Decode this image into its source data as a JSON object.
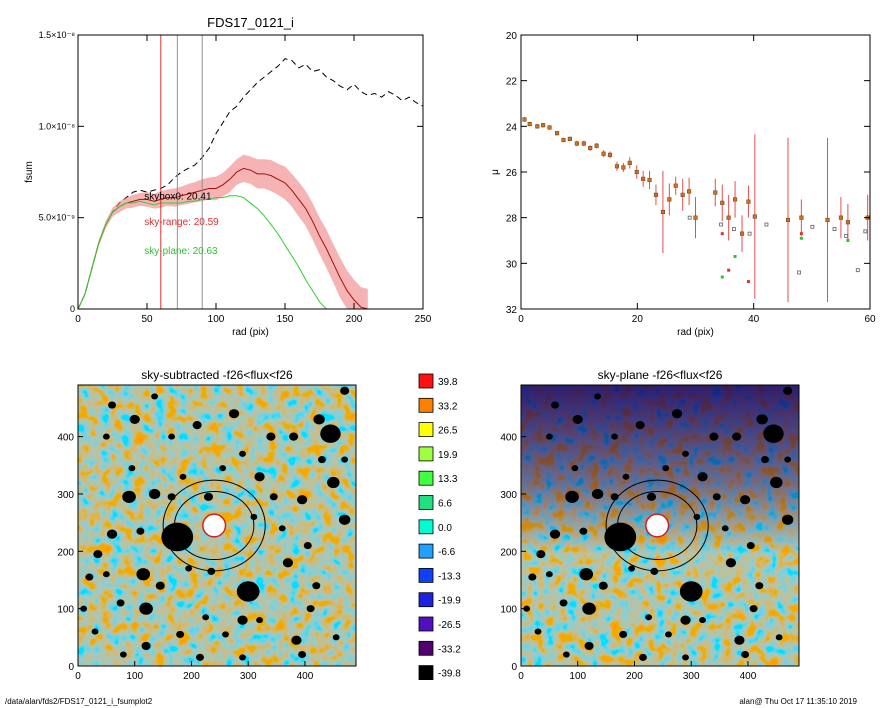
{
  "footer": {
    "path": "/data/alan/fds2/FDS17_0121_i_fsumplot2",
    "stamp": "alan@  Thu Oct 17 11:35:10 2019"
  },
  "chart_data": [
    {
      "id": "fsum",
      "type": "line",
      "title": "FDS17_0121_i",
      "xlabel": "rad (pix)",
      "ylabel": "fsum",
      "xlim": [
        0,
        250
      ],
      "ylim": [
        0,
        1.5e-08
      ],
      "xticks": [
        0,
        50,
        100,
        150,
        200,
        250
      ],
      "yticks": [
        {
          "v": 0,
          "label": "0"
        },
        {
          "v": 5e-09,
          "label": "5.0×10⁻⁹"
        },
        {
          "v": 1e-08,
          "label": "1.0×10⁻⁸"
        },
        {
          "v": 1.5e-08,
          "label": "1.5×10⁻⁸"
        }
      ],
      "vlines": [
        {
          "x": 60,
          "color": "#e03030"
        },
        {
          "x": 72,
          "color": "#909090"
        },
        {
          "x": 90,
          "color": "#909090"
        }
      ],
      "annotations": [
        {
          "text": "skybox0: 20.41",
          "x": 48,
          "y": 6e-09,
          "color": "#000000"
        },
        {
          "text": "sky-range: 20.59",
          "x": 48,
          "y": 4.6e-09,
          "color": "#e03030"
        },
        {
          "text": "sky-plane: 20.63",
          "x": 48,
          "y": 3e-09,
          "color": "#30c030"
        }
      ],
      "series": [
        {
          "style": "dash",
          "color": "#000000",
          "x": [
            0,
            5,
            10,
            15,
            20,
            25,
            30,
            35,
            40,
            45,
            50,
            55,
            60,
            65,
            70,
            75,
            80,
            85,
            90,
            95,
            100,
            105,
            110,
            115,
            120,
            125,
            130,
            135,
            140,
            145,
            150,
            155,
            160,
            165,
            170,
            175,
            180,
            185,
            190,
            195,
            200,
            205,
            210,
            215,
            220,
            225,
            230,
            235,
            240,
            245,
            250
          ],
          "y": [
            0,
            8e-10,
            2.2e-09,
            3.6e-09,
            4.6e-09,
            5.3e-09,
            5.8e-09,
            6.1e-09,
            6.4e-09,
            6.5e-09,
            6.4e-09,
            6.5e-09,
            6.6e-09,
            6.8e-09,
            7.2e-09,
            7.5e-09,
            7.7e-09,
            7.9e-09,
            8.3e-09,
            8.8e-09,
            9.6e-09,
            1.02e-08,
            1.08e-08,
            1.11e-08,
            1.16e-08,
            1.2e-08,
            1.24e-08,
            1.27e-08,
            1.3e-08,
            1.33e-08,
            1.37e-08,
            1.36e-08,
            1.32e-08,
            1.34e-08,
            1.3e-08,
            1.31e-08,
            1.27e-08,
            1.25e-08,
            1.22e-08,
            1.2e-08,
            1.23e-08,
            1.19e-08,
            1.17e-08,
            1.18e-08,
            1.16e-08,
            1.19e-08,
            1.17e-08,
            1.14e-08,
            1.16e-08,
            1.13e-08,
            1.11e-08
          ]
        },
        {
          "style": "band",
          "color": "#f08080",
          "x": [
            0,
            5,
            10,
            15,
            20,
            25,
            30,
            35,
            40,
            45,
            50,
            55,
            60,
            65,
            70,
            75,
            80,
            85,
            90,
            95,
            100,
            105,
            110,
            115,
            120,
            125,
            130,
            135,
            140,
            145,
            150,
            155,
            160,
            165,
            170,
            175,
            180,
            185,
            190,
            195,
            200,
            205,
            210
          ],
          "y": [
            0,
            8e-10,
            2.2e-09,
            3.6e-09,
            4.6e-09,
            5.3e-09,
            5.6e-09,
            5.8e-09,
            5.9e-09,
            6e-09,
            6e-09,
            5.9e-09,
            6e-09,
            6.1e-09,
            6.1e-09,
            6.2e-09,
            6.3e-09,
            6.4e-09,
            6.5e-09,
            6.6e-09,
            6.6e-09,
            6.8e-09,
            7.1e-09,
            7.5e-09,
            7.7e-09,
            7.6e-09,
            7.4e-09,
            7.4e-09,
            7.3e-09,
            7.1e-09,
            6.9e-09,
            6.5e-09,
            6e-09,
            5.5e-09,
            4.8e-09,
            4e-09,
            3.3e-09,
            2.5e-09,
            1.7e-09,
            1e-09,
            5e-10,
            1e-10,
            0
          ],
          "err": [
            0,
            5e-11,
            1e-10,
            1.5e-10,
            2e-10,
            2.5e-10,
            3e-10,
            3e-10,
            3.5e-10,
            3.5e-10,
            4e-10,
            4e-10,
            4.5e-10,
            4.5e-10,
            5e-10,
            5e-10,
            5.5e-10,
            5.5e-10,
            6e-10,
            6e-10,
            6.5e-10,
            6.5e-10,
            7e-10,
            7e-10,
            7.5e-10,
            7.5e-10,
            8e-10,
            8e-10,
            8.5e-10,
            8.5e-10,
            9e-10,
            9e-10,
            9.5e-10,
            9.5e-10,
            1e-09,
            1e-09,
            1.05e-09,
            1.05e-09,
            1.1e-09,
            1.1e-09,
            1.1e-09,
            1.1e-09,
            1.1e-09
          ]
        },
        {
          "style": "solid",
          "color": "#a01010",
          "x": [
            0,
            5,
            10,
            15,
            20,
            25,
            30,
            35,
            40,
            45,
            50,
            55,
            60,
            65,
            70,
            75,
            80,
            85,
            90,
            95,
            100,
            105,
            110,
            115,
            120,
            125,
            130,
            135,
            140,
            145,
            150,
            155,
            160,
            165,
            170,
            175,
            180,
            185,
            190,
            195,
            200,
            205,
            210
          ],
          "y": [
            0,
            8e-10,
            2.2e-09,
            3.6e-09,
            4.6e-09,
            5.3e-09,
            5.6e-09,
            5.8e-09,
            5.9e-09,
            6e-09,
            6e-09,
            5.9e-09,
            6e-09,
            6.1e-09,
            6.1e-09,
            6.2e-09,
            6.3e-09,
            6.4e-09,
            6.5e-09,
            6.6e-09,
            6.6e-09,
            6.8e-09,
            7.1e-09,
            7.5e-09,
            7.7e-09,
            7.6e-09,
            7.4e-09,
            7.4e-09,
            7.3e-09,
            7.1e-09,
            6.9e-09,
            6.5e-09,
            6e-09,
            5.5e-09,
            4.8e-09,
            4e-09,
            3.3e-09,
            2.5e-09,
            1.7e-09,
            1e-09,
            5e-10,
            1e-10,
            0
          ]
        },
        {
          "style": "solid",
          "color": "#30d030",
          "x": [
            0,
            5,
            10,
            15,
            20,
            25,
            30,
            35,
            40,
            45,
            50,
            55,
            60,
            65,
            70,
            75,
            80,
            85,
            90,
            95,
            100,
            105,
            110,
            115,
            120,
            125,
            130,
            135,
            140,
            145,
            150,
            155,
            160,
            165,
            170,
            175,
            180
          ],
          "y": [
            0,
            8e-10,
            2.2e-09,
            3.6e-09,
            4.6e-09,
            5.3e-09,
            5.6e-09,
            5.8e-09,
            5.8e-09,
            5.9e-09,
            5.8e-09,
            5.7e-09,
            5.8e-09,
            5.8e-09,
            5.8e-09,
            5.8e-09,
            5.9e-09,
            5.9e-09,
            6e-09,
            6e-09,
            6.1e-09,
            6.1e-09,
            6.2e-09,
            6.2e-09,
            6.1e-09,
            5.8e-09,
            5.5e-09,
            5.1e-09,
            4.6e-09,
            4.1e-09,
            3.5e-09,
            2.9e-09,
            2.3e-09,
            1.6e-09,
            1e-09,
            4e-10,
            0
          ]
        }
      ]
    },
    {
      "id": "mu",
      "type": "scatter",
      "title": "",
      "xlabel": "rad (pix)",
      "ylabel": "μ",
      "xlim": [
        0,
        60
      ],
      "ylim": [
        32,
        20
      ],
      "xticks": [
        0,
        20,
        40,
        60
      ],
      "yticks": [
        20,
        22,
        24,
        26,
        28,
        30,
        32
      ],
      "points": [
        [
          0.6,
          23.7,
          0.1
        ],
        [
          1.5,
          23.9,
          0.1
        ],
        [
          2.8,
          24.0,
          0.1
        ],
        [
          3.8,
          23.95,
          0.1
        ],
        [
          4.9,
          24.05,
          0.1
        ],
        [
          6.2,
          24.3,
          0.1
        ],
        [
          7.3,
          24.6,
          0.1
        ],
        [
          8.4,
          24.55,
          0.1
        ],
        [
          9.6,
          24.75,
          0.12
        ],
        [
          10.8,
          24.75,
          0.12
        ],
        [
          11.9,
          24.95,
          0.12
        ],
        [
          13.0,
          24.85,
          0.12
        ],
        [
          14.2,
          25.2,
          0.15
        ],
        [
          15.3,
          25.25,
          0.15
        ],
        [
          16.5,
          25.75,
          0.2
        ],
        [
          17.6,
          25.8,
          0.2
        ],
        [
          18.7,
          25.6,
          0.25
        ],
        [
          19.9,
          26.0,
          0.3
        ],
        [
          21.0,
          26.3,
          0.35
        ],
        [
          22.1,
          26.35,
          0.4
        ],
        [
          23.2,
          27.0,
          0.45
        ],
        [
          24.4,
          27.75,
          1.8
        ],
        [
          25.5,
          27.2,
          0.7
        ],
        [
          26.6,
          26.6,
          0.4
        ],
        [
          27.8,
          27.0,
          0.7
        ],
        [
          28.9,
          26.85,
          0.6
        ],
        [
          30.0,
          28.0,
          0.9
        ],
        [
          33.4,
          26.9,
          0.6
        ],
        [
          34.6,
          27.35,
          0.8
        ],
        [
          35.7,
          28.0,
          1.0
        ],
        [
          36.8,
          27.2,
          0.8
        ],
        [
          38.0,
          28.7,
          0.8
        ],
        [
          39.1,
          27.3,
          0.7
        ],
        [
          40.2,
          27.95,
          3.6
        ],
        [
          45.9,
          28.1,
          3.6
        ],
        [
          48.2,
          28.0,
          0.8
        ],
        [
          52.7,
          28.1,
          3.6
        ],
        [
          55.0,
          28.0,
          0.9
        ],
        [
          56.2,
          28.2,
          0.8
        ],
        [
          59.6,
          28.0,
          1.0
        ]
      ],
      "outliers": [
        {
          "x": 35.7,
          "y": 30.3,
          "c": "#e03030"
        },
        {
          "x": 34.6,
          "y": 28.7,
          "c": "#e03030"
        },
        {
          "x": 39.1,
          "y": 30.8,
          "c": "#e03030"
        },
        {
          "x": 48.2,
          "y": 28.7,
          "c": "#e03030"
        },
        {
          "x": 48.2,
          "y": 28.9,
          "c": "#30c030"
        },
        {
          "x": 36.8,
          "y": 29.7,
          "c": "#30c030"
        },
        {
          "x": 34.6,
          "y": 30.6,
          "c": "#30c030"
        },
        {
          "x": 56.2,
          "y": 29.0,
          "c": "#30c030"
        }
      ],
      "grey_points": [
        [
          29.0,
          28.0
        ],
        [
          34.4,
          28.3
        ],
        [
          36.6,
          28.5
        ],
        [
          39.3,
          28.7
        ],
        [
          42.2,
          28.3
        ],
        [
          47.8,
          30.4
        ],
        [
          50.1,
          28.4
        ],
        [
          53.9,
          28.5
        ],
        [
          55.9,
          28.8
        ],
        [
          57.9,
          30.3
        ],
        [
          59.2,
          28.6
        ]
      ]
    },
    {
      "id": "sky-subtracted",
      "type": "heatmap",
      "title": "sky-subtracted -f26<flux<f26",
      "xlim": [
        0,
        490
      ],
      "ylim": [
        0,
        490
      ],
      "xticks": [
        0,
        100,
        200,
        300,
        400
      ],
      "yticks": [
        0,
        100,
        200,
        300,
        400
      ],
      "gradient": "none"
    },
    {
      "id": "sky-plane",
      "type": "heatmap",
      "title": "sky-plane -f26<flux<f26",
      "xlim": [
        0,
        490
      ],
      "ylim": [
        0,
        490
      ],
      "xticks": [
        0,
        100,
        200,
        300,
        400
      ],
      "yticks": [
        0,
        100,
        200,
        300,
        400
      ],
      "gradient": "top-dark"
    }
  ],
  "colorbar": {
    "labels": [
      "39.8",
      "33.2",
      "26.5",
      "19.9",
      "13.3",
      "6.6",
      "0.0",
      "-6.6",
      "-13.3",
      "-19.9",
      "-26.5",
      "-33.2",
      "-39.8"
    ],
    "colors": [
      "#ff1010",
      "#ff8000",
      "#ffff00",
      "#a0ff40",
      "#40ff40",
      "#20e080",
      "#00ffd0",
      "#20a0ff",
      "#1040ff",
      "#2020e0",
      "#5010c0",
      "#500070",
      "#000000"
    ]
  },
  "map_sources": [
    {
      "x": 175,
      "y": 225,
      "r": 28
    },
    {
      "x": 90,
      "y": 295,
      "r": 12
    },
    {
      "x": 135,
      "y": 300,
      "r": 10
    },
    {
      "x": 60,
      "y": 230,
      "r": 9
    },
    {
      "x": 110,
      "y": 235,
      "r": 7
    },
    {
      "x": 115,
      "y": 160,
      "r": 12
    },
    {
      "x": 120,
      "y": 100,
      "r": 12
    },
    {
      "x": 145,
      "y": 140,
      "r": 8
    },
    {
      "x": 300,
      "y": 130,
      "r": 20
    },
    {
      "x": 290,
      "y": 80,
      "r": 9
    },
    {
      "x": 450,
      "y": 320,
      "r": 11
    },
    {
      "x": 470,
      "y": 255,
      "r": 10
    },
    {
      "x": 445,
      "y": 405,
      "r": 18
    },
    {
      "x": 425,
      "y": 430,
      "r": 10
    },
    {
      "x": 320,
      "y": 330,
      "r": 9
    },
    {
      "x": 345,
      "y": 295,
      "r": 7
    },
    {
      "x": 310,
      "y": 260,
      "r": 6
    },
    {
      "x": 235,
      "y": 165,
      "r": 7
    },
    {
      "x": 195,
      "y": 170,
      "r": 6
    },
    {
      "x": 165,
      "y": 295,
      "r": 7
    },
    {
      "x": 230,
      "y": 295,
      "r": 8
    },
    {
      "x": 210,
      "y": 420,
      "r": 8
    },
    {
      "x": 275,
      "y": 440,
      "r": 9
    },
    {
      "x": 100,
      "y": 430,
      "r": 9
    },
    {
      "x": 60,
      "y": 455,
      "r": 7
    },
    {
      "x": 35,
      "y": 195,
      "r": 8
    },
    {
      "x": 20,
      "y": 155,
      "r": 7
    },
    {
      "x": 30,
      "y": 60,
      "r": 6
    },
    {
      "x": 75,
      "y": 110,
      "r": 7
    },
    {
      "x": 120,
      "y": 35,
      "r": 8
    },
    {
      "x": 385,
      "y": 45,
      "r": 9
    },
    {
      "x": 395,
      "y": 20,
      "r": 7
    },
    {
      "x": 410,
      "y": 100,
      "r": 7
    },
    {
      "x": 420,
      "y": 140,
      "r": 7
    },
    {
      "x": 370,
      "y": 180,
      "r": 9
    },
    {
      "x": 470,
      "y": 480,
      "r": 8
    },
    {
      "x": 340,
      "y": 400,
      "r": 8
    },
    {
      "x": 380,
      "y": 400,
      "r": 8
    },
    {
      "x": 430,
      "y": 360,
      "r": 7
    },
    {
      "x": 395,
      "y": 290,
      "r": 9
    },
    {
      "x": 470,
      "y": 360,
      "r": 6
    },
    {
      "x": 50,
      "y": 160,
      "r": 6
    },
    {
      "x": 180,
      "y": 55,
      "r": 7
    },
    {
      "x": 225,
      "y": 85,
      "r": 6
    },
    {
      "x": 260,
      "y": 55,
      "r": 6
    },
    {
      "x": 165,
      "y": 400,
      "r": 6
    },
    {
      "x": 50,
      "y": 400,
      "r": 6
    },
    {
      "x": 95,
      "y": 345,
      "r": 6
    },
    {
      "x": 185,
      "y": 330,
      "r": 6
    },
    {
      "x": 255,
      "y": 345,
      "r": 6
    },
    {
      "x": 360,
      "y": 240,
      "r": 6
    },
    {
      "x": 290,
      "y": 370,
      "r": 6
    },
    {
      "x": 405,
      "y": 210,
      "r": 7
    },
    {
      "x": 135,
      "y": 470,
      "r": 6
    },
    {
      "x": 10,
      "y": 100,
      "r": 6
    },
    {
      "x": 320,
      "y": 80,
      "r": 6
    },
    {
      "x": 215,
      "y": 15,
      "r": 7
    },
    {
      "x": 290,
      "y": 15,
      "r": 6
    },
    {
      "x": 455,
      "y": 50,
      "r": 6
    },
    {
      "x": 80,
      "y": 20,
      "r": 6
    }
  ],
  "map_hot": [
    {
      "x": 240,
      "y": 245,
      "r": 20
    }
  ],
  "map_ellipses": [
    {
      "rx": 70,
      "ry": 60
    },
    {
      "rx": 90,
      "ry": 80
    }
  ]
}
